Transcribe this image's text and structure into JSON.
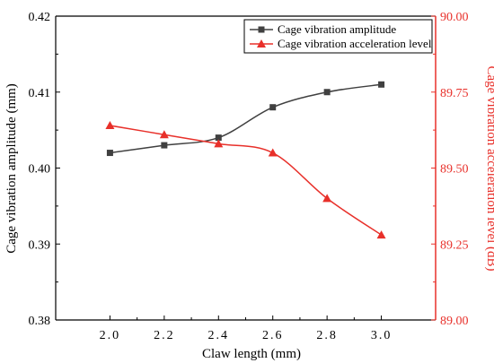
{
  "chart_data": {
    "type": "line",
    "x": [
      2.0,
      2.2,
      2.4,
      2.6,
      2.8,
      3.0
    ],
    "x_tick_labels": [
      "2.0",
      "2.2",
      "2.4",
      "2.6",
      "2.8",
      "3.0"
    ],
    "xlabel": "Claw length (mm)",
    "xlim": [
      1.8,
      3.2
    ],
    "y_left": {
      "label": "Cage vibration amplitude (mm)",
      "lim": [
        0.38,
        0.42
      ],
      "ticks": [
        0.38,
        0.39,
        0.4,
        0.41,
        0.42
      ],
      "tick_labels": [
        "0.38",
        "0.39",
        "0.40",
        "0.41",
        "0.42"
      ]
    },
    "y_right": {
      "label": "Cage vibration acceleration level (dB)",
      "lim": [
        89.0,
        90.0
      ],
      "ticks": [
        89.0,
        89.25,
        89.5,
        89.75,
        90.0
      ],
      "tick_labels": [
        "89.00",
        "89.25",
        "89.50",
        "89.75",
        "90.00"
      ],
      "color": "#e8302a"
    },
    "series": [
      {
        "name": "Cage vibration amplitude",
        "axis": "left",
        "marker": "square",
        "color": "#404040",
        "values": [
          0.402,
          0.403,
          0.404,
          0.408,
          0.41,
          0.411
        ]
      },
      {
        "name": "Cage vibration acceleration level",
        "axis": "right",
        "marker": "triangle",
        "color": "#e8302a",
        "values": [
          89.64,
          89.61,
          89.58,
          89.55,
          89.4,
          89.28
        ]
      }
    ],
    "legend_position": "top-right",
    "grid": false
  }
}
